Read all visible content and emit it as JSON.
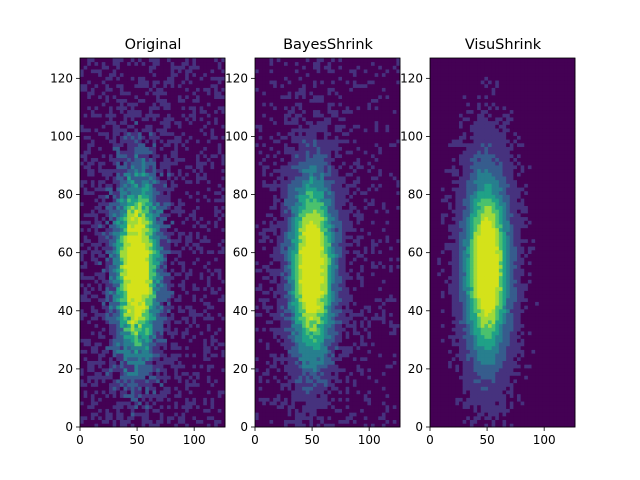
{
  "chart_data": [
    {
      "type": "heatmap",
      "title": "Original",
      "xlabel": "",
      "ylabel": "",
      "xlim": [
        0,
        127
      ],
      "ylim": [
        0,
        127
      ],
      "xticks": [
        0,
        50,
        100
      ],
      "yticks": [
        0,
        20,
        40,
        60,
        80,
        100,
        120
      ],
      "noise_level": 1.0,
      "blob_center": [
        50,
        55
      ],
      "colormap": "viridis",
      "contour_levels": 7
    },
    {
      "type": "heatmap",
      "title": "BayesShrink",
      "xlabel": "",
      "ylabel": "",
      "xlim": [
        0,
        127
      ],
      "ylim": [
        0,
        127
      ],
      "xticks": [
        0,
        50,
        100
      ],
      "yticks": [
        0,
        20,
        40,
        60,
        80,
        100,
        120
      ],
      "noise_level": 0.55,
      "blob_center": [
        50,
        55
      ],
      "colormap": "viridis",
      "contour_levels": 7
    },
    {
      "type": "heatmap",
      "title": "VisuShrink",
      "xlabel": "",
      "ylabel": "",
      "xlim": [
        0,
        127
      ],
      "ylim": [
        0,
        127
      ],
      "xticks": [
        0,
        50,
        100
      ],
      "yticks": [
        0,
        20,
        40,
        60,
        80,
        100,
        120
      ],
      "noise_level": 0.3,
      "blob_center": [
        50,
        55
      ],
      "colormap": "viridis",
      "contour_levels": 7
    }
  ],
  "colors": {
    "levels": [
      "#440154",
      "#46327e",
      "#365c8d",
      "#277f8e",
      "#1fa187",
      "#4ac16d",
      "#a0da39",
      "#d4e21a"
    ]
  }
}
